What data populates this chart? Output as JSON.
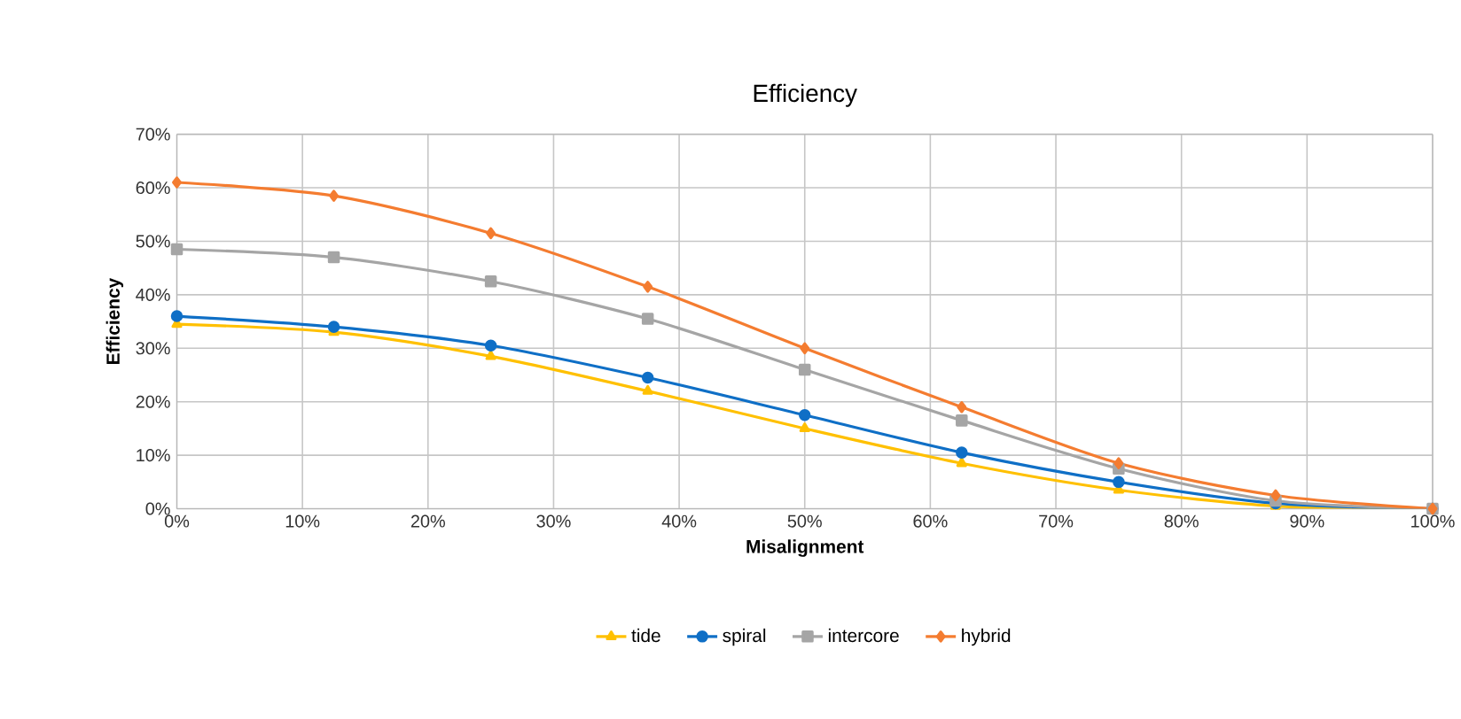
{
  "chart_data": {
    "type": "line",
    "title": "Efficiency",
    "xlabel": "Misalignment",
    "ylabel": "Efficiency",
    "x": [
      0,
      12.5,
      25,
      37.5,
      50,
      62.5,
      75,
      87.5,
      100
    ],
    "series": [
      {
        "name": "tide",
        "color": "#ffc000",
        "marker": "triangle",
        "values": [
          34.5,
          33,
          28.5,
          22,
          15,
          8.5,
          3.5,
          0.5,
          0
        ]
      },
      {
        "name": "spiral",
        "color": "#0f6fc6",
        "marker": "circle",
        "values": [
          36,
          34,
          30.5,
          24.5,
          17.5,
          10.5,
          5,
          1,
          0
        ]
      },
      {
        "name": "intercore",
        "color": "#a5a5a5",
        "marker": "square",
        "values": [
          48.5,
          47,
          42.5,
          35.5,
          26,
          16.5,
          7.5,
          1.5,
          0
        ]
      },
      {
        "name": "hybrid",
        "color": "#f47c30",
        "marker": "diamond",
        "values": [
          61,
          58.5,
          51.5,
          41.5,
          30,
          19,
          8.5,
          2.5,
          0
        ]
      }
    ],
    "xlim": [
      0,
      100
    ],
    "ylim": [
      0,
      70
    ],
    "xticks": [
      {
        "value": 0,
        "label": "0%"
      },
      {
        "value": 10,
        "label": "10%"
      },
      {
        "value": 20,
        "label": "20%"
      },
      {
        "value": 30,
        "label": "30%"
      },
      {
        "value": 40,
        "label": "40%"
      },
      {
        "value": 50,
        "label": "50%"
      },
      {
        "value": 60,
        "label": "60%"
      },
      {
        "value": 70,
        "label": "70%"
      },
      {
        "value": 80,
        "label": "80%"
      },
      {
        "value": 90,
        "label": "90%"
      },
      {
        "value": 100,
        "label": "100%"
      }
    ],
    "yticks": [
      {
        "value": 0,
        "label": "0%"
      },
      {
        "value": 10,
        "label": "10%"
      },
      {
        "value": 20,
        "label": "20%"
      },
      {
        "value": 30,
        "label": "30%"
      },
      {
        "value": 40,
        "label": "40%"
      },
      {
        "value": 50,
        "label": "50%"
      },
      {
        "value": 60,
        "label": "60%"
      },
      {
        "value": 70,
        "label": "70%"
      }
    ],
    "grid": true,
    "legend": "bottom",
    "line_style": "solid"
  }
}
